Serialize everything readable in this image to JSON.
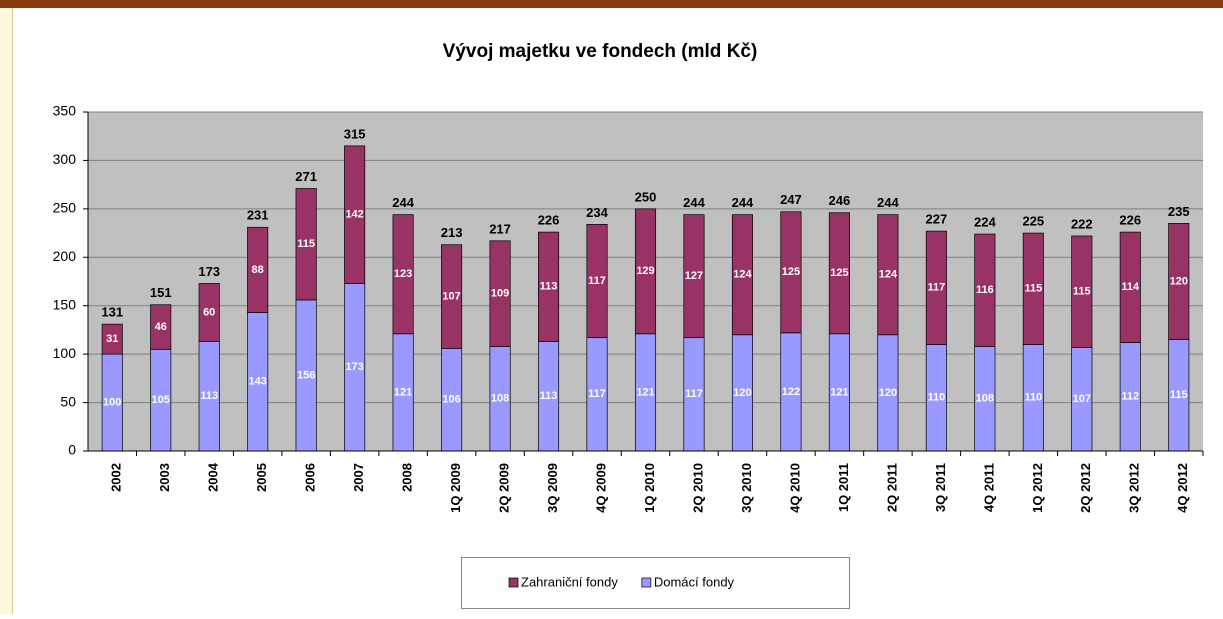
{
  "chart_data": {
    "type": "stacked_bar",
    "title": "Vývoj majetku ve fondech (mld Kč)",
    "categories": [
      "2002",
      "2003",
      "2004",
      "2005",
      "2006",
      "2007",
      "2008",
      "1Q 2009",
      "2Q 2009",
      "3Q 2009",
      "4Q 2009",
      "1Q 2010",
      "2Q 2010",
      "3Q 2010",
      "4Q 2010",
      "1Q 2011",
      "2Q 2011",
      "3Q 2011",
      "4Q 2011",
      "1Q 2012",
      "2Q 2012",
      "3Q 2012",
      "4Q 2012"
    ],
    "series": [
      {
        "name": "Domácí fondy",
        "color": "#9999ff",
        "values": [
          100,
          105,
          113,
          143,
          156,
          173,
          121,
          106,
          108,
          113,
          117,
          121,
          117,
          120,
          122,
          121,
          120,
          110,
          108,
          110,
          107,
          112,
          115
        ]
      },
      {
        "name": "Zahraniční fondy",
        "color": "#993366",
        "values": [
          31,
          46,
          60,
          88,
          115,
          142,
          123,
          107,
          109,
          113,
          117,
          129,
          127,
          124,
          125,
          125,
          124,
          117,
          116,
          115,
          115,
          114,
          120
        ]
      }
    ],
    "total_labels": [
      131,
      151,
      173,
      231,
      271,
      315,
      244,
      213,
      217,
      226,
      234,
      250,
      244,
      244,
      247,
      246,
      244,
      227,
      224,
      225,
      222,
      226,
      235
    ],
    "ylim": [
      0,
      350
    ],
    "yticks": [
      0,
      50,
      100,
      150,
      200,
      250,
      300,
      350
    ],
    "grid": true
  }
}
